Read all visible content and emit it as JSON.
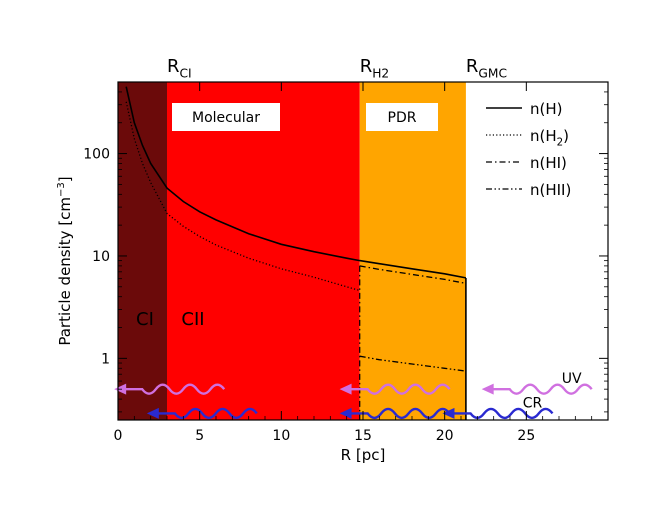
{
  "chart_data": {
    "type": "line",
    "xlabel_main": "R",
    "xlabel_unit": "[pc]",
    "ylabel_main": "Particle density",
    "ylabel_unit": "[cm",
    "ylabel_exp": "−3",
    "ylabel_close": "]",
    "yscale": "log",
    "xlim": [
      0,
      30
    ],
    "ylim": [
      0.25,
      500
    ],
    "x_ticks": [
      0,
      5,
      10,
      15,
      20,
      25
    ],
    "x_tick_labels": [
      "0",
      "5",
      "10",
      "15",
      "20",
      "25"
    ],
    "y_ticks": [
      1,
      10,
      100
    ],
    "y_tick_labels": [
      "1",
      "10",
      "100"
    ],
    "regions": [
      {
        "name": "CI",
        "x0": 0,
        "x1": 3,
        "color": "#6b0a0a"
      },
      {
        "name": "Molecular",
        "x0": 3,
        "x1": 14.8,
        "color": "#ff0000"
      },
      {
        "name": "PDR",
        "x0": 14.8,
        "x1": 21.3,
        "color": "#ffa500"
      }
    ],
    "boundaries": [
      {
        "main": "R",
        "sub": "CI",
        "x": 3
      },
      {
        "main": "R",
        "sub": "H2",
        "x": 14.8
      },
      {
        "main": "R",
        "sub": "GMC",
        "x": 21.3
      }
    ],
    "region_boxes": [
      "Molecular",
      "PDR"
    ],
    "zone_labels": [
      "CI",
      "CII"
    ],
    "series": [
      {
        "name": "n(H)",
        "label_main": "n(H)",
        "label_sub": "",
        "label_close": "",
        "style": "solid",
        "x": [
          0.5,
          1,
          1.5,
          2,
          3,
          4,
          5,
          6,
          8,
          10,
          12,
          14,
          14.8,
          16,
          18,
          20,
          21.3
        ],
        "y": [
          450,
          200,
          120,
          80,
          46,
          34,
          27,
          22.5,
          16.5,
          13,
          11,
          9.5,
          9,
          8.4,
          7.5,
          6.7,
          6.1
        ]
      },
      {
        "name": "n(H2)",
        "label_main": "n(H",
        "label_sub": "2",
        "label_close": ")",
        "style": "dotted",
        "x": [
          0.5,
          1,
          1.5,
          2,
          3,
          4,
          5,
          6,
          8,
          10,
          12,
          14,
          14.8
        ],
        "y": [
          320,
          140,
          80,
          52,
          26,
          19.5,
          15.5,
          12.8,
          9.5,
          7.5,
          6.2,
          5.0,
          4.6
        ]
      },
      {
        "name": "n(HI)",
        "label_main": "n(HI)",
        "label_sub": "",
        "label_close": "",
        "style": "dashdot",
        "x": [
          14.8,
          16,
          18,
          20,
          21.3
        ],
        "y": [
          8.0,
          7.4,
          6.6,
          5.9,
          5.4
        ]
      },
      {
        "name": "n(HII)",
        "label_main": "n(HII)",
        "label_sub": "",
        "label_close": "",
        "style": "dashdotdot",
        "x": [
          14.8,
          16,
          18,
          20,
          21.3
        ],
        "y": [
          1.05,
          0.97,
          0.88,
          0.8,
          0.75
        ]
      }
    ],
    "radiation": [
      {
        "label": "UV",
        "color": "#d070e0",
        "x": [
          6.5,
          20.3,
          29.0
        ],
        "y": 0.5
      },
      {
        "label": "CR",
        "color": "#2a2ad0",
        "x": [
          8.5,
          20.3,
          26.6
        ],
        "y": 0.29
      }
    ]
  }
}
